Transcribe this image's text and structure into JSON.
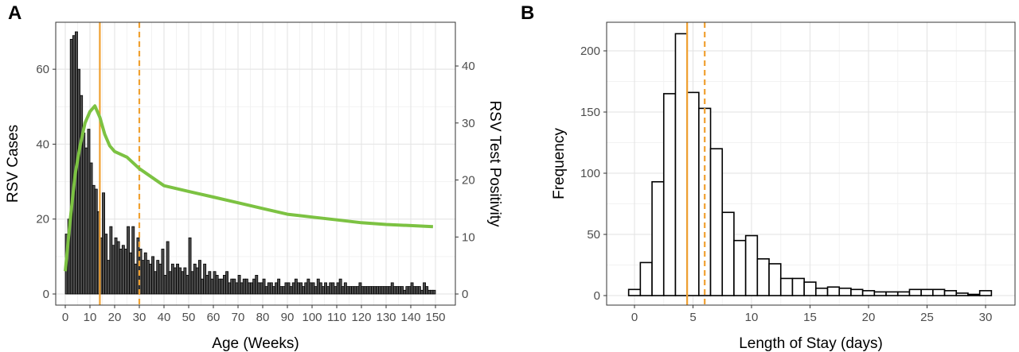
{
  "chart_data": [
    {
      "type": "bar",
      "panel_label": "A",
      "title": "",
      "xlabel": "Age (Weeks)",
      "ylabel": "RSV Cases",
      "y2label": "RSV Test Positivity",
      "xlim": [
        0,
        150
      ],
      "ylim": [
        0,
        70
      ],
      "y2lim": [
        0,
        46
      ],
      "x_ticks": [
        0,
        10,
        20,
        30,
        40,
        50,
        60,
        70,
        80,
        90,
        100,
        110,
        120,
        130,
        140,
        150
      ],
      "y_ticks": [
        0,
        20,
        40,
        60
      ],
      "y2_ticks": [
        0,
        10,
        20,
        30,
        40
      ],
      "grid": true,
      "bar_color": "#4d4d4d",
      "positivity_color": "#7cc242",
      "vline_color": "#f0a030",
      "solid_vline_x": 14,
      "dashed_vline_x": 30,
      "series": [
        {
          "name": "RSV Cases",
          "x": [
            0,
            1,
            2,
            3,
            4,
            5,
            6,
            7,
            8,
            9,
            10,
            11,
            12,
            13,
            14,
            15,
            16,
            17,
            18,
            19,
            20,
            21,
            22,
            23,
            24,
            25,
            26,
            27,
            28,
            29,
            30,
            31,
            32,
            33,
            34,
            35,
            36,
            37,
            38,
            39,
            40,
            41,
            42,
            43,
            44,
            45,
            46,
            47,
            48,
            49,
            50,
            51,
            52,
            53,
            54,
            55,
            56,
            57,
            58,
            59,
            60,
            61,
            62,
            63,
            64,
            65,
            66,
            67,
            68,
            69,
            70,
            71,
            72,
            73,
            74,
            75,
            76,
            77,
            78,
            79,
            80,
            81,
            82,
            83,
            84,
            85,
            86,
            87,
            88,
            89,
            90,
            91,
            92,
            93,
            94,
            95,
            96,
            97,
            98,
            99,
            100,
            101,
            102,
            103,
            104,
            105,
            106,
            107,
            108,
            109,
            110,
            111,
            112,
            113,
            114,
            115,
            116,
            117,
            118,
            119,
            120,
            121,
            122,
            123,
            124,
            125,
            126,
            127,
            128,
            129,
            130,
            131,
            132,
            133,
            134,
            135,
            136,
            137,
            138,
            139,
            140,
            141,
            142,
            143,
            144,
            145,
            146,
            147,
            148,
            149
          ],
          "values": [
            16,
            20,
            68,
            69,
            70,
            60,
            53,
            43,
            39,
            44,
            35,
            29,
            28,
            22,
            15,
            27,
            16,
            9,
            18,
            13,
            15,
            14,
            12,
            13,
            12,
            18,
            11,
            18,
            8,
            15,
            12,
            9,
            11,
            9,
            8,
            10,
            6,
            9,
            8,
            12,
            5,
            14,
            6,
            8,
            7,
            8,
            7,
            6,
            7,
            5,
            15,
            6,
            8,
            7,
            9,
            4,
            8,
            5,
            6,
            4,
            6,
            5,
            4,
            4,
            5,
            6,
            3,
            4,
            4,
            3,
            5,
            3,
            4,
            4,
            3,
            3,
            4,
            5,
            3,
            3,
            4,
            2,
            3,
            3,
            2,
            3,
            4,
            2,
            2,
            3,
            3,
            2,
            3,
            4,
            3,
            3,
            2,
            3,
            4,
            3,
            3,
            2,
            4,
            3,
            2,
            3,
            2,
            3,
            3,
            2,
            3,
            4,
            2,
            3,
            2,
            2,
            2,
            2,
            2,
            3,
            2,
            2,
            2,
            2,
            2,
            2,
            2,
            2,
            2,
            2,
            2,
            2,
            3,
            2,
            2,
            2,
            2,
            1,
            2,
            2,
            3,
            2,
            2,
            2,
            1,
            3,
            2,
            1,
            1,
            1
          ]
        },
        {
          "name": "RSV Test Positivity",
          "x": [
            0,
            2,
            4,
            6,
            8,
            10,
            12,
            14,
            16,
            18,
            20,
            25,
            30,
            40,
            50,
            60,
            70,
            80,
            90,
            100,
            110,
            120,
            130,
            140,
            149
          ],
          "values": [
            4,
            13,
            21,
            26,
            30,
            32,
            33,
            31,
            28,
            26,
            25,
            24,
            22,
            19,
            18,
            17,
            16,
            15,
            14,
            13.5,
            13,
            12.5,
            12.2,
            12,
            11.8
          ]
        }
      ]
    },
    {
      "type": "bar",
      "panel_label": "B",
      "title": "",
      "xlabel": "Length of Stay (days)",
      "ylabel": "Frequency",
      "xlim": [
        -3,
        31
      ],
      "ylim": [
        0,
        230
      ],
      "x_ticks": [
        0,
        5,
        10,
        15,
        20,
        25,
        30
      ],
      "y_ticks": [
        0,
        50,
        100,
        150,
        200
      ],
      "grid": true,
      "vline_color": "#f0a030",
      "solid_vline_x": 4.5,
      "dashed_vline_x": 6,
      "bin_width": 1,
      "x": [
        0,
        1,
        2,
        3,
        4,
        5,
        6,
        7,
        8,
        9,
        10,
        11,
        12,
        13,
        14,
        15,
        16,
        17,
        18,
        19,
        20,
        21,
        22,
        23,
        24,
        25,
        26,
        27,
        28,
        29,
        30
      ],
      "values": [
        5,
        27,
        93,
        165,
        214,
        166,
        153,
        120,
        68,
        45,
        49,
        30,
        26,
        14,
        14,
        11,
        6,
        7,
        6,
        5,
        4,
        3,
        3,
        3,
        5,
        5,
        5,
        4,
        2,
        1,
        4
      ]
    }
  ]
}
